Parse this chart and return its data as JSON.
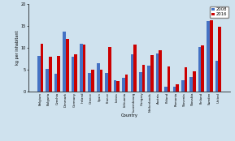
{
  "countries": [
    "Belgium",
    "Bulgaria",
    "Czechia",
    "Denmark",
    "Germany",
    "Ireland",
    "Greece",
    "Spain",
    "France",
    "Latvia",
    "Lithuania",
    "Luxembourg",
    "Hungary",
    "Netherlands",
    "Austria",
    "Poland",
    "Romania",
    "Slovenia",
    "Slovakia",
    "Finland",
    "Sweden",
    "United"
  ],
  "values_2008": [
    8.2,
    5.3,
    4.1,
    13.8,
    7.9,
    11.0,
    4.3,
    6.5,
    4.3,
    2.7,
    3.2,
    8.6,
    4.4,
    5.9,
    8.7,
    1.1,
    1.1,
    2.7,
    3.3,
    10.2,
    16.2,
    7.1
  ],
  "values_2016": [
    11.0,
    8.0,
    8.1,
    12.1,
    8.6,
    10.8,
    5.0,
    5.0,
    10.3,
    2.5,
    4.0,
    10.7,
    6.1,
    8.4,
    9.4,
    5.8,
    1.7,
    5.6,
    4.6,
    10.6,
    16.3,
    14.8
  ],
  "color_2008": "#4472c4",
  "color_2016": "#cc0000",
  "ylabel": "kg per inhabitant",
  "xlabel": "Country",
  "ylim": [
    0,
    20
  ],
  "yticks": [
    0,
    5,
    10,
    15,
    20
  ],
  "legend_labels": [
    "2008",
    "2016"
  ],
  "background_color": "#cfe2ee",
  "bar_width": 0.35
}
